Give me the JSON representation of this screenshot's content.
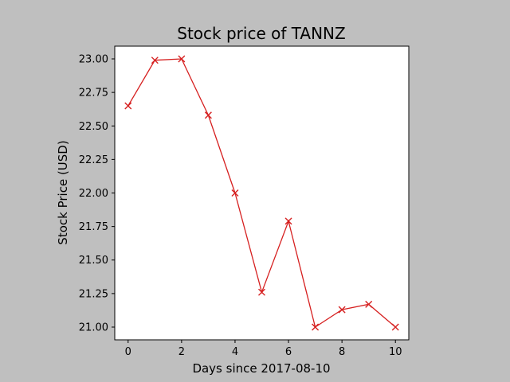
{
  "chart_data": {
    "type": "line",
    "title": "Stock price of TANNZ",
    "xlabel": "Days since 2017-08-10",
    "ylabel": "Stock Price (USD)",
    "x": [
      0,
      1,
      2,
      3,
      4,
      5,
      6,
      7,
      8,
      9,
      10
    ],
    "series": [
      {
        "values": [
          22.65,
          22.99,
          23.0,
          22.58,
          22.0,
          21.26,
          21.79,
          21.0,
          21.13,
          21.17,
          21.0
        ]
      }
    ],
    "xlim": [
      -0.5,
      10.5
    ],
    "ylim": [
      20.905,
      23.095
    ],
    "xticks": [
      0,
      2,
      4,
      6,
      8,
      10
    ],
    "xtick_labels": [
      "0",
      "2",
      "4",
      "6",
      "8",
      "10"
    ],
    "yticks": [
      21.0,
      21.25,
      21.5,
      21.75,
      22.0,
      22.25,
      22.5,
      22.75,
      23.0
    ],
    "ytick_labels": [
      "21.00",
      "21.25",
      "21.50",
      "21.75",
      "22.00",
      "22.25",
      "22.50",
      "22.75",
      "23.00"
    ],
    "grid": false,
    "marker": "x",
    "line_color": "#d62020",
    "background_color": "#bfbfbf",
    "plot_background": "#ffffff"
  }
}
